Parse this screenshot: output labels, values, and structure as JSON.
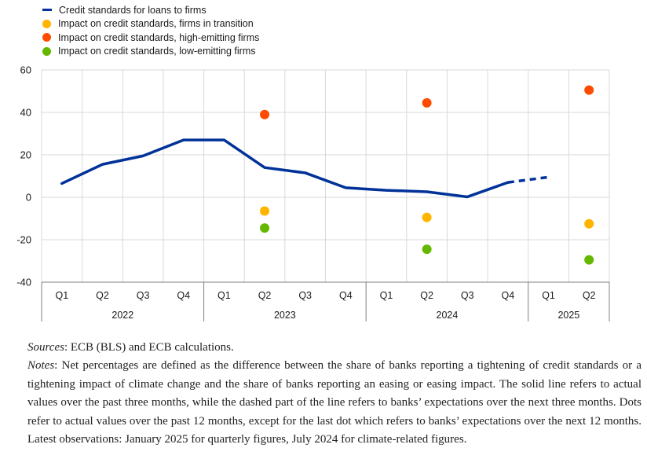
{
  "chart_data": {
    "type": "line",
    "title": "",
    "xlabel": "",
    "ylabel": "",
    "ylim": [
      -40,
      60
    ],
    "yticks": [
      60,
      40,
      20,
      0,
      -20,
      -40
    ],
    "grid": true,
    "legend_position": "top-left",
    "quarters": [
      "Q1",
      "Q2",
      "Q3",
      "Q4",
      "Q1",
      "Q2",
      "Q3",
      "Q4",
      "Q1",
      "Q2",
      "Q3",
      "Q4",
      "Q1",
      "Q2"
    ],
    "years": [
      {
        "label": "2022",
        "start": 0,
        "end": 3
      },
      {
        "label": "2023",
        "start": 4,
        "end": 7
      },
      {
        "label": "2024",
        "start": 8,
        "end": 11
      },
      {
        "label": "2025",
        "start": 12,
        "end": 13
      }
    ],
    "series": [
      {
        "name": "Credit standards for loans to firms",
        "kind": "line",
        "color": "#003299",
        "actual": [
          [
            0,
            6.5
          ],
          [
            1,
            15.5
          ],
          [
            2,
            19.5
          ],
          [
            3,
            27
          ],
          [
            4,
            27
          ],
          [
            5,
            14
          ],
          [
            6,
            11.5
          ],
          [
            7,
            4.5
          ],
          [
            8,
            3.3
          ],
          [
            9,
            2.6
          ],
          [
            10,
            0.2
          ],
          [
            11,
            7
          ]
        ],
        "expected": [
          [
            11,
            7
          ],
          [
            12,
            9.5
          ]
        ]
      },
      {
        "name": "Impact on credit standards, firms in transition",
        "kind": "dots",
        "color": "#ffb400",
        "points": [
          [
            5,
            -6.5
          ],
          [
            9,
            -9.5
          ],
          [
            13,
            -12.5
          ]
        ]
      },
      {
        "name": "Impact on credit standards, high-emitting firms",
        "kind": "dots",
        "color": "#ff4b00",
        "points": [
          [
            5,
            39
          ],
          [
            9,
            44.5
          ],
          [
            13,
            50.5
          ]
        ]
      },
      {
        "name": "Impact on credit standards, low-emitting firms",
        "kind": "dots",
        "color": "#65b800",
        "points": [
          [
            5,
            -14.5
          ],
          [
            9,
            -24.5
          ],
          [
            13,
            -29.5
          ]
        ]
      }
    ]
  },
  "notes": {
    "sources_label": "Sources",
    "sources_text": ": ECB (BLS) and ECB calculations.",
    "notes_label": "Notes",
    "notes_text": ": Net percentages are defined as the difference between the share of banks reporting a tightening of credit standards or a tightening impact of climate change and the share of banks reporting an easing or easing impact. The solid line refers to actual values over the past three months, while the dashed part of the line refers to banks’ expectations over the next three months. Dots refer to actual values over the past 12 months, except for the last dot which refers to banks’ expectations over the next 12 months. Latest observations: January 2025 for quarterly figures, July 2024 for climate-related figures."
  }
}
